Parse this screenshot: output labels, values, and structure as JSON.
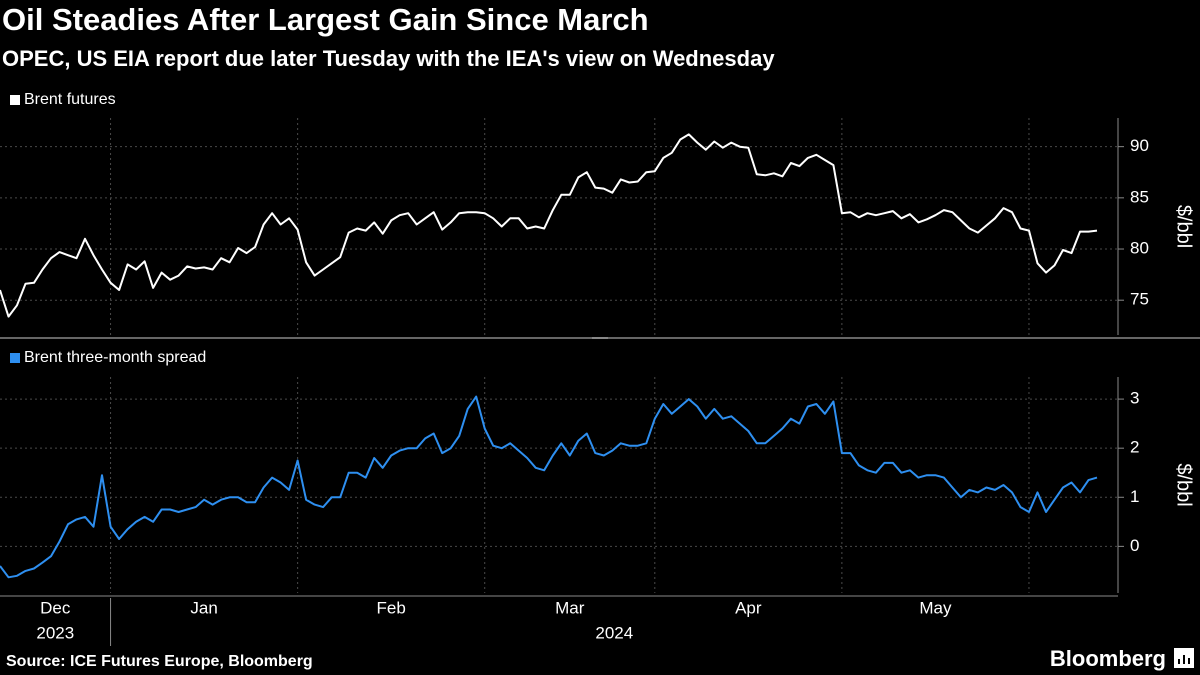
{
  "title": "Oil Steadies After Largest Gain Since March",
  "subtitle": "OPEC, US EIA report due later Tuesday with the IEA's view on Wednesday",
  "source": "Source: ICE Futures Europe, Bloomberg",
  "brand": "Bloomberg",
  "chart_data": [
    {
      "type": "line",
      "y_label": "$/bbl",
      "grid": true,
      "ylim": [
        71.6,
        92.8
      ],
      "yticks": [
        75,
        80,
        85,
        90
      ],
      "series": [
        {
          "name": "Brent futures",
          "color": "#ffffff",
          "values": [
            76,
            73.4,
            74.5,
            76.6,
            76.7,
            78,
            79.1,
            79.7,
            79.4,
            79.1,
            81,
            79.4,
            78,
            76.7,
            76,
            78.5,
            78,
            78.8,
            76.2,
            77.7,
            77,
            77.4,
            78.3,
            78.1,
            78.2,
            78,
            79.1,
            78.7,
            80.1,
            79.6,
            80.2,
            82.4,
            83.5,
            82.4,
            83,
            81.9,
            78.7,
            77.4,
            78,
            78.6,
            79.2,
            81.6,
            82,
            81.8,
            82.6,
            81.5,
            82.8,
            83.3,
            83.5,
            82.4,
            83,
            83.6,
            81.9,
            82.6,
            83.5,
            83.6,
            83.6,
            83.5,
            83,
            82.2,
            83,
            83,
            82,
            82.2,
            82,
            83.8,
            85.3,
            85.3,
            87,
            87.5,
            86,
            85.9,
            85.5,
            86.8,
            86.5,
            86.6,
            87.5,
            87.6,
            88.9,
            89.4,
            90.7,
            91.2,
            90.4,
            89.7,
            90.5,
            89.9,
            90.4,
            90,
            89.9,
            87.3,
            87.2,
            87.4,
            87.1,
            88.4,
            88.1,
            88.9,
            89.2,
            88.7,
            88.2,
            83.5,
            83.6,
            83.1,
            83.5,
            83.3,
            83.5,
            83.7,
            83,
            83.4,
            82.6,
            82.9,
            83.3,
            83.8,
            83.6,
            82.8,
            82,
            81.6,
            82.3,
            83,
            84,
            83.6,
            82,
            81.8,
            78.6,
            77.7,
            78.4,
            79.9,
            79.6,
            81.7,
            81.7,
            81.8
          ]
        }
      ]
    },
    {
      "type": "line",
      "y_label": "$/bbl",
      "grid": true,
      "ylim": [
        -0.95,
        3.45
      ],
      "yticks": [
        0,
        1,
        2,
        3
      ],
      "categories": [
        "Dec",
        null,
        null,
        null,
        null,
        null,
        null,
        null,
        null,
        null,
        null,
        null,
        null,
        "Jan",
        null,
        null,
        null,
        null,
        null,
        null,
        null,
        null,
        null,
        null,
        null,
        null,
        null,
        null,
        null,
        null,
        null,
        null,
        null,
        null,
        null,
        "Feb",
        null,
        null,
        null,
        null,
        null,
        null,
        null,
        null,
        null,
        null,
        null,
        null,
        null,
        null,
        null,
        null,
        null,
        null,
        null,
        null,
        null,
        "Mar",
        null,
        null,
        null,
        null,
        null,
        null,
        null,
        null,
        null,
        null,
        null,
        null,
        null,
        null,
        null,
        null,
        null,
        null,
        null,
        "Apr",
        null,
        null,
        null,
        null,
        null,
        null,
        null,
        null,
        null,
        null,
        null,
        null,
        null,
        null,
        null,
        null,
        null,
        null,
        null,
        null,
        null,
        "May",
        null,
        null,
        null,
        null,
        null,
        null,
        null,
        null,
        null,
        null,
        null,
        null,
        null,
        null,
        null,
        null,
        null,
        null,
        null,
        null,
        null,
        null,
        null,
        null,
        null,
        null,
        null,
        null,
        null,
        null
      ],
      "year_categories": [
        "2023",
        null,
        null,
        null,
        null,
        null,
        null,
        null,
        null,
        null,
        null,
        null,
        null,
        "2024",
        null,
        null,
        null,
        null,
        null,
        null,
        null,
        null,
        null,
        null,
        null,
        null,
        null,
        null,
        null,
        null,
        null,
        null,
        null,
        null,
        null,
        null,
        null,
        null,
        null,
        null,
        null,
        null,
        null,
        null,
        null,
        null,
        null,
        null,
        null,
        null,
        null,
        null,
        null,
        null,
        null,
        null,
        null,
        null,
        null,
        null,
        null,
        null,
        null,
        null,
        null,
        null,
        null,
        null,
        null,
        null,
        null,
        null,
        null,
        null,
        null,
        null,
        null,
        null,
        null,
        null,
        null,
        null,
        null,
        null,
        null,
        null,
        null,
        null,
        null,
        null,
        null,
        null,
        null,
        null,
        null,
        null,
        null,
        null,
        null,
        null,
        null,
        null,
        null,
        null,
        null,
        null,
        null,
        null,
        null,
        null,
        null,
        null,
        null,
        null,
        null,
        null,
        null,
        null,
        null,
        null,
        null,
        null,
        null,
        null,
        null,
        null,
        null,
        null,
        null,
        null
      ],
      "series": [
        {
          "name": "Brent three-month spread",
          "color": "#2e8ff0",
          "values": [
            -0.4,
            -0.63,
            -0.6,
            -0.5,
            -0.45,
            -0.33,
            -0.2,
            0.1,
            0.45,
            0.55,
            0.6,
            0.4,
            1.45,
            0.4,
            0.15,
            0.35,
            0.5,
            0.6,
            0.5,
            0.75,
            0.75,
            0.7,
            0.75,
            0.8,
            0.95,
            0.85,
            0.95,
            1.0,
            1.0,
            0.9,
            0.9,
            1.2,
            1.4,
            1.3,
            1.15,
            1.75,
            0.95,
            0.85,
            0.8,
            1.0,
            1.0,
            1.5,
            1.5,
            1.4,
            1.8,
            1.6,
            1.85,
            1.95,
            2.0,
            2.0,
            2.2,
            2.3,
            1.9,
            2.0,
            2.25,
            2.8,
            3.05,
            2.4,
            2.05,
            2.0,
            2.1,
            1.95,
            1.8,
            1.6,
            1.55,
            1.85,
            2.1,
            1.85,
            2.15,
            2.3,
            1.9,
            1.85,
            1.95,
            2.1,
            2.05,
            2.05,
            2.1,
            2.6,
            2.9,
            2.7,
            2.85,
            3.0,
            2.85,
            2.6,
            2.8,
            2.6,
            2.65,
            2.5,
            2.35,
            2.1,
            2.1,
            2.25,
            2.4,
            2.6,
            2.5,
            2.85,
            2.9,
            2.7,
            2.95,
            1.9,
            1.9,
            1.65,
            1.55,
            1.5,
            1.7,
            1.7,
            1.5,
            1.55,
            1.4,
            1.45,
            1.45,
            1.4,
            1.2,
            1.0,
            1.15,
            1.1,
            1.2,
            1.15,
            1.25,
            1.1,
            0.8,
            0.7,
            1.1,
            0.7,
            0.95,
            1.2,
            1.3,
            1.1,
            1.35,
            1.4
          ]
        }
      ]
    }
  ]
}
